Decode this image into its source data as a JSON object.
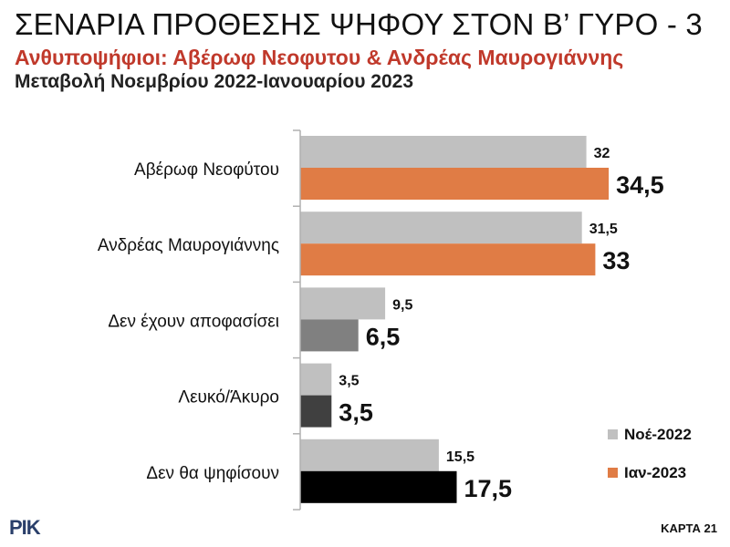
{
  "header": {
    "title": "ΣΕΝΑΡΙΑ ΠΡΟΘΕΣΗΣ ΨΗΦΟΥ ΣΤΟΝ Β’ ΓΥΡΟ - 3",
    "subtitle": "Ανθυποψήφιοι: Αβέρωφ Νεοφυτου & Ανδρέας Μαυρογιάννης",
    "subtitle2": "Μεταβολή Νοεμβρίου 2022-Ιανουαρίου 2023"
  },
  "footer": {
    "logo": "ΡΙΚ",
    "map_number": "ΚΑΡΤΑ 21"
  },
  "chart_data": {
    "type": "bar",
    "orientation": "horizontal",
    "categories": [
      "Αβέρωφ Νεοφύτου",
      "Ανδρέας Μαυρογιάννης",
      "Δεν έχουν αποφασίσει",
      "Λευκό/Άκυρο",
      "Δεν θα ψηφίσουν"
    ],
    "series": [
      {
        "name": "Νοέ-2022",
        "values": [
          32,
          31.5,
          9.5,
          3.5,
          15.5
        ],
        "labels": [
          "32",
          "31,5",
          "9,5",
          "3,5",
          "15,5"
        ],
        "color": "#c0c0c0"
      },
      {
        "name": "Ιαν-2023",
        "values": [
          34.5,
          33,
          6.5,
          3.5,
          17.5
        ],
        "labels": [
          "34,5",
          "33",
          "6,5",
          "3,5",
          "17,5"
        ],
        "color": "#e07c45",
        "bar_colors": [
          "#e07c45",
          "#e07c45",
          "#808080",
          "#404040",
          "#000000"
        ]
      }
    ],
    "xlim": [
      0,
      38
    ],
    "legend_position": "bottom-right",
    "grid": false,
    "axis_line_color": "#b0b0b0"
  }
}
